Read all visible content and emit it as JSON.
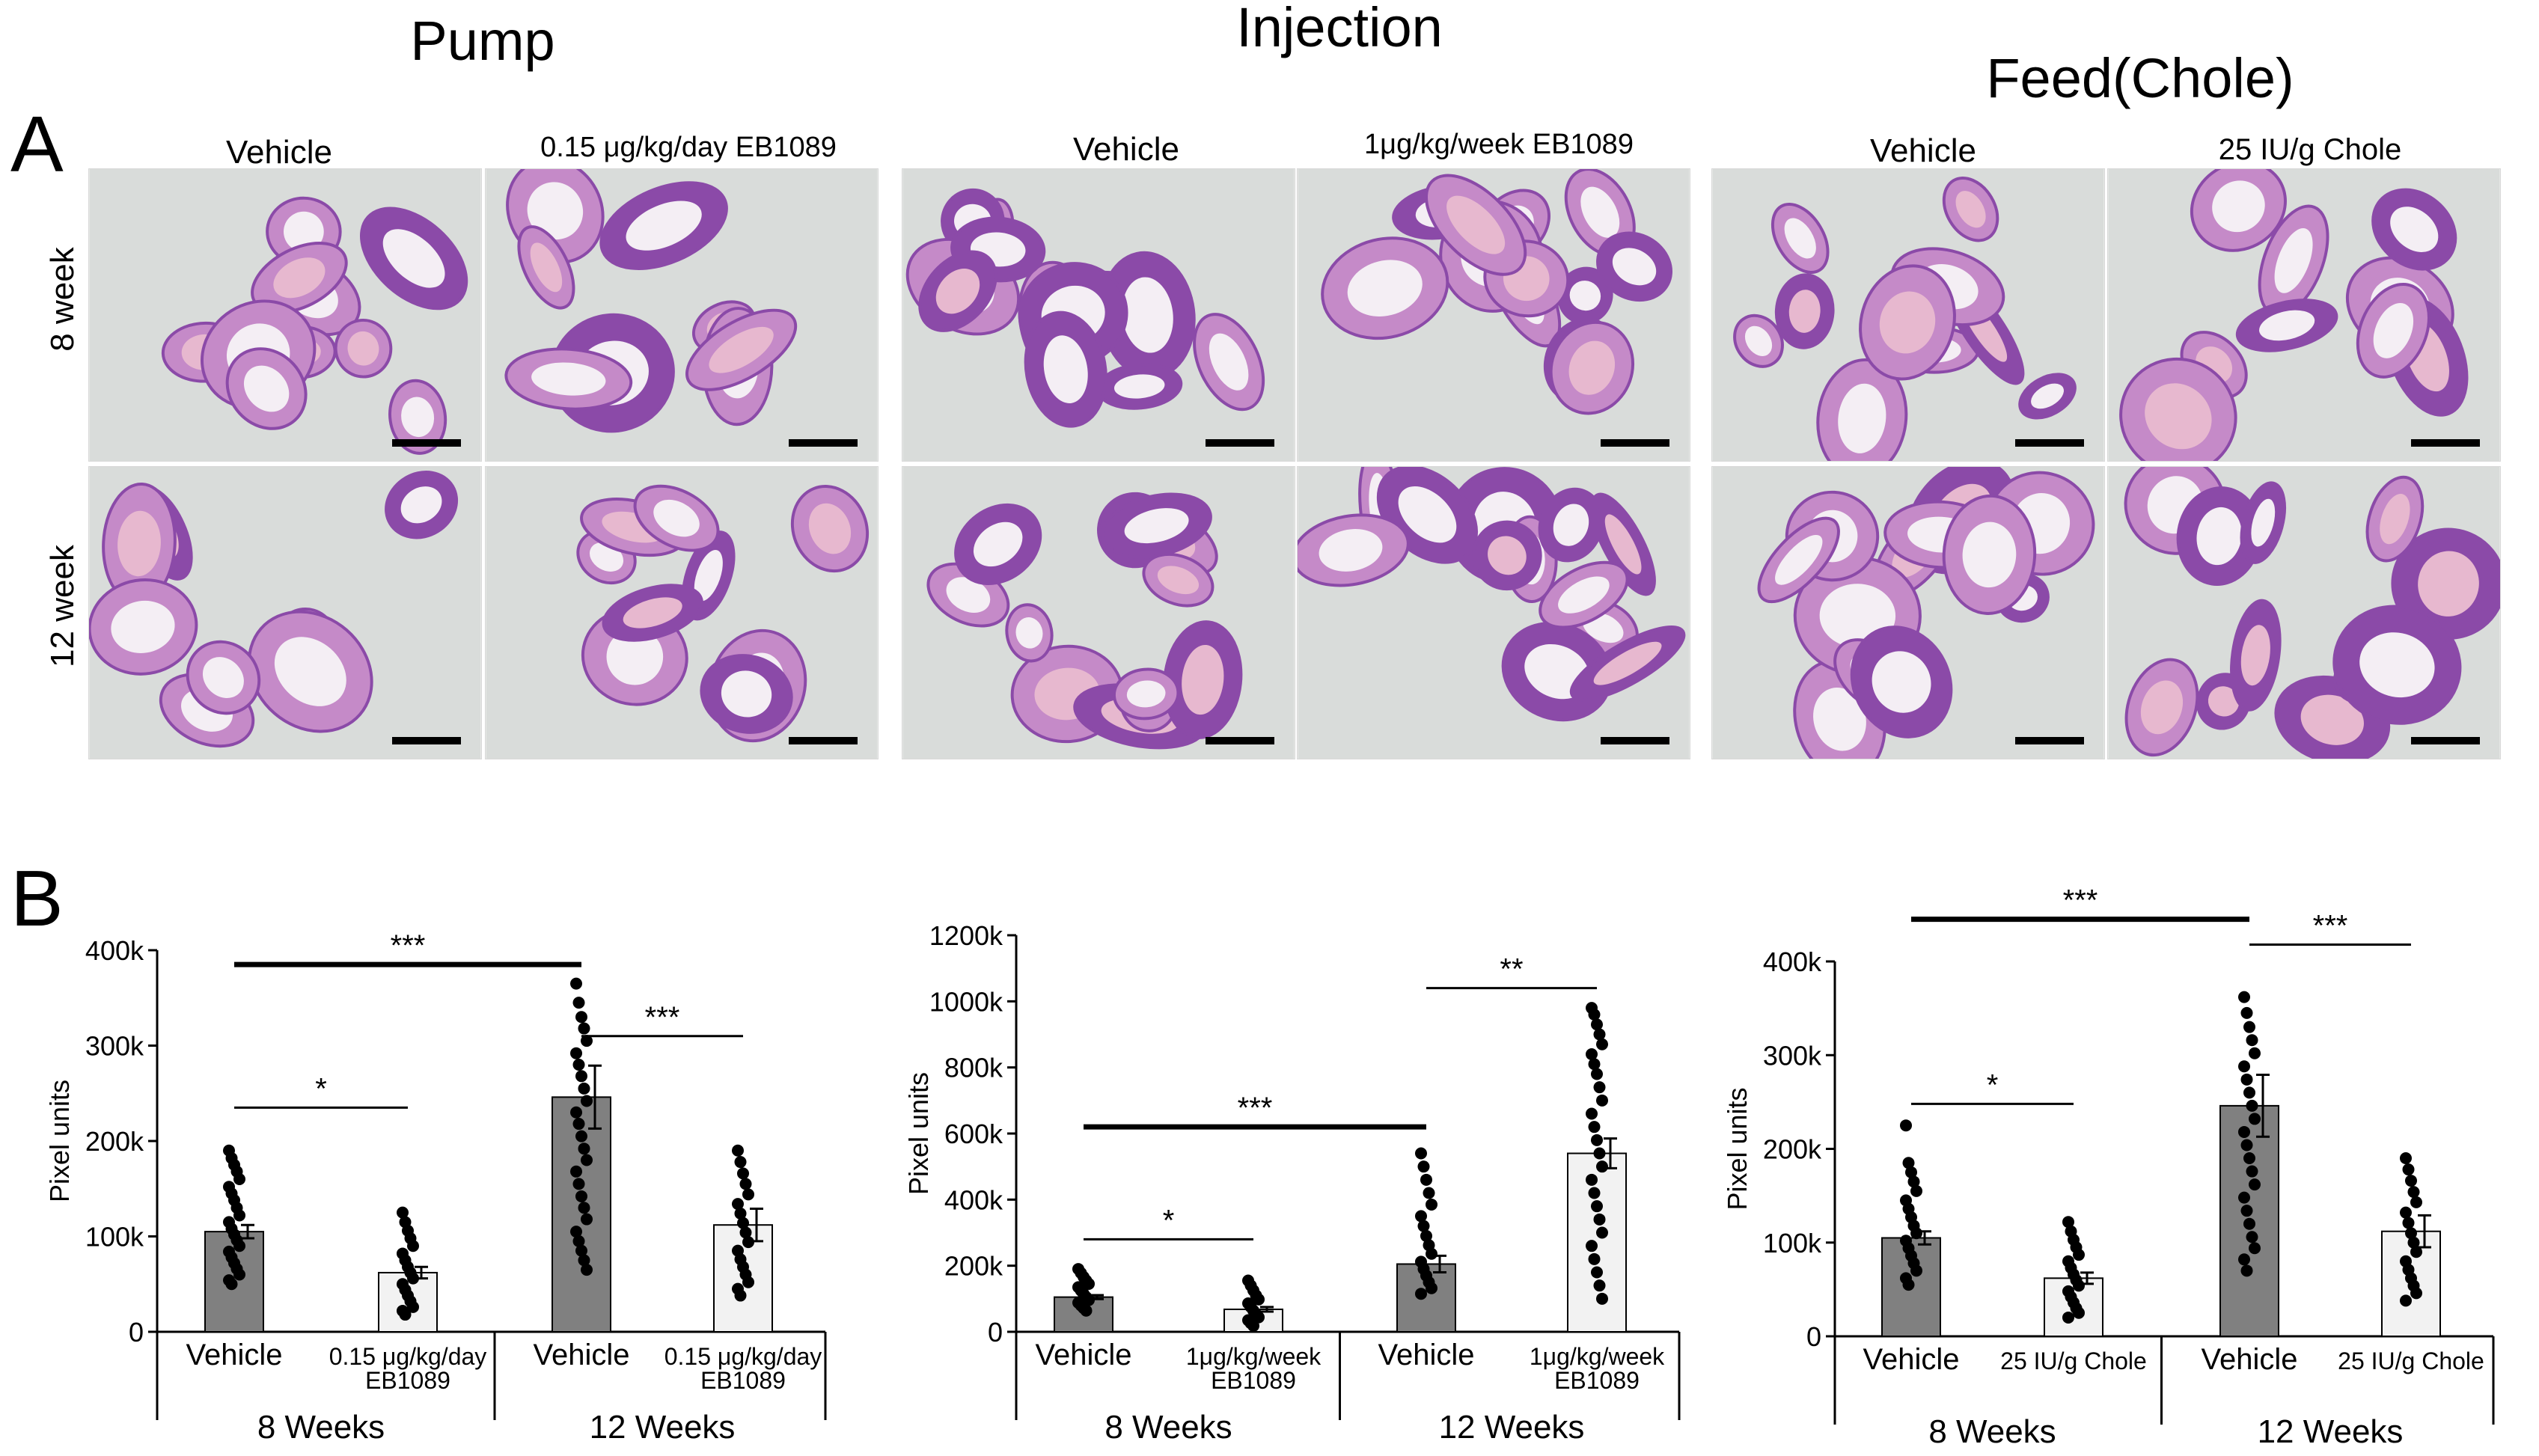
{
  "panel_a": {
    "letter": "A",
    "groups": [
      {
        "title": "Pump",
        "columns": [
          "Vehicle",
          "0.15 μg/kg/day EB1089"
        ]
      },
      {
        "title": "Injection",
        "columns": [
          "Vehicle",
          "1μg/kg/week EB1089"
        ]
      },
      {
        "title": "Feed(Chole)",
        "columns": [
          "Vehicle",
          "25 IU/g Chole"
        ]
      }
    ],
    "rows": [
      "8 week",
      "12 week"
    ],
    "tissue_colors": {
      "background": "#d9dcda",
      "tissue": "#8b4aa8",
      "tissue_light": "#c58ac8",
      "stroma": "#e7b8cf"
    }
  },
  "panel_b": {
    "letter": "B"
  },
  "chart_data": [
    {
      "type": "bar",
      "title": "",
      "ylabel": "Pixel units",
      "ylim": [
        0,
        400000
      ],
      "yticks": [
        0,
        100000,
        200000,
        300000,
        400000
      ],
      "ytick_labels": [
        "0",
        "100k",
        "200k",
        "300k",
        "400k"
      ],
      "categories": [
        "Vehicle",
        "0.15 μg/kg/day EB1089",
        "Vehicle",
        "0.15 μg/kg/day EB1089"
      ],
      "category_lines": [
        [
          "Vehicle"
        ],
        [
          "0.15 μg/kg/day",
          "EB1089"
        ],
        [
          "Vehicle"
        ],
        [
          "0.15 μg/kg/day",
          "EB1089"
        ]
      ],
      "groups": [
        "8 Weeks",
        "12 Weeks"
      ],
      "values": [
        105000,
        62000,
        246000,
        112000
      ],
      "errors": [
        7000,
        6000,
        33000,
        17000
      ],
      "bar_colors": [
        "#808080",
        "#f2f2f2",
        "#808080",
        "#f2f2f2"
      ],
      "points": [
        [
          190000,
          182000,
          175000,
          168000,
          160000,
          152000,
          145000,
          138000,
          130000,
          122000,
          115000,
          108000,
          102000,
          96000,
          90000,
          84000,
          78000,
          72000,
          66000,
          60000,
          54000,
          50000
        ],
        [
          125000,
          115000,
          106000,
          98000,
          90000,
          82000,
          75000,
          68000,
          62000,
          56000,
          50000,
          44000,
          38000,
          32000,
          26000,
          22000,
          18000
        ],
        [
          365000,
          345000,
          330000,
          318000,
          305000,
          292000,
          280000,
          268000,
          255000,
          242000,
          230000,
          218000,
          205000,
          192000,
          180000,
          168000,
          155000,
          142000,
          130000,
          118000,
          105000,
          95000,
          85000,
          75000,
          65000
        ],
        [
          190000,
          178000,
          166000,
          155000,
          144000,
          134000,
          124000,
          114000,
          104000,
          94000,
          85000,
          76000,
          68000,
          60000,
          52000,
          45000,
          38000
        ]
      ],
      "significance": [
        {
          "from": 0,
          "to": 1,
          "label": "*",
          "y": 235000,
          "bold": false
        },
        {
          "from": 0,
          "to": 2,
          "label": "***",
          "y": 385000,
          "bold": true
        },
        {
          "from": 2,
          "to": 3,
          "label": "***",
          "y": 310000,
          "bold": false
        }
      ]
    },
    {
      "type": "bar",
      "title": "",
      "ylabel": "Pixel units",
      "ylim": [
        0,
        1200000
      ],
      "yticks": [
        0,
        200000,
        400000,
        600000,
        800000,
        1000000,
        1200000
      ],
      "ytick_labels": [
        "0",
        "200k",
        "400k",
        "600k",
        "800k",
        "1000k",
        "1200k"
      ],
      "categories": [
        "Vehicle",
        "1μg/kg/week EB1089",
        "Vehicle",
        "1μg/kg/week EB1089"
      ],
      "category_lines": [
        [
          "Vehicle"
        ],
        [
          "1μg/kg/week",
          "EB1089"
        ],
        [
          "Vehicle"
        ],
        [
          "1μg/kg/week",
          "EB1089"
        ]
      ],
      "groups": [
        "8 Weeks",
        "12 Weeks"
      ],
      "values": [
        105000,
        68000,
        205000,
        540000
      ],
      "errors": [
        6000,
        7000,
        25000,
        45000
      ],
      "bar_colors": [
        "#808080",
        "#f2f2f2",
        "#808080",
        "#f2f2f2"
      ],
      "points": [
        [
          190000,
          178000,
          166000,
          155000,
          145000,
          135000,
          125000,
          115000,
          105000,
          96000,
          88000,
          80000,
          72000,
          64000
        ],
        [
          155000,
          140000,
          125000,
          110000,
          98000,
          86000,
          75000,
          64000,
          54000,
          44000,
          35000,
          26000,
          18000
        ],
        [
          540000,
          500000,
          460000,
          420000,
          385000,
          350000,
          320000,
          290000,
          262000,
          236000,
          212000,
          190000,
          170000,
          150000,
          132000,
          115000
        ],
        [
          980000,
          960000,
          930000,
          900000,
          870000,
          840000,
          810000,
          780000,
          740000,
          700000,
          660000,
          620000,
          580000,
          540000,
          500000,
          460000,
          420000,
          380000,
          340000,
          300000,
          260000,
          220000,
          180000,
          140000,
          100000
        ]
      ],
      "significance": [
        {
          "from": 0,
          "to": 1,
          "label": "*",
          "y": 280000,
          "bold": false
        },
        {
          "from": 0,
          "to": 2,
          "label": "***",
          "y": 620000,
          "bold": true
        },
        {
          "from": 2,
          "to": 3,
          "label": "**",
          "y": 1040000,
          "bold": false
        }
      ]
    },
    {
      "type": "bar",
      "title": "",
      "ylabel": "Pixel units",
      "ylim": [
        0,
        400000
      ],
      "yticks": [
        0,
        100000,
        200000,
        300000,
        400000
      ],
      "ytick_labels": [
        "0",
        "100k",
        "200k",
        "300k",
        "400k"
      ],
      "categories": [
        "Vehicle",
        "25 IU/g Chole",
        "Vehicle",
        "25 IU/g Chole"
      ],
      "category_lines": [
        [
          "Vehicle"
        ],
        [
          "25 IU/g Chole"
        ],
        [
          "Vehicle"
        ],
        [
          "25 IU/g Chole"
        ]
      ],
      "groups": [
        "8 Weeks",
        "12 Weeks"
      ],
      "values": [
        105000,
        62000,
        246000,
        112000
      ],
      "errors": [
        7000,
        6000,
        33000,
        17000
      ],
      "bar_colors": [
        "#808080",
        "#f2f2f2",
        "#808080",
        "#f2f2f2"
      ],
      "points": [
        [
          225000,
          185000,
          175000,
          165000,
          155000,
          145000,
          136000,
          127000,
          118000,
          110000,
          102000,
          94000,
          86000,
          78000,
          70000,
          62000,
          55000
        ],
        [
          122000,
          112000,
          103000,
          95000,
          87000,
          80000,
          73000,
          66000,
          60000,
          54000,
          48000,
          42000,
          36000,
          30000,
          25000,
          20000
        ],
        [
          362000,
          345000,
          330000,
          316000,
          302000,
          288000,
          274000,
          260000,
          246000,
          232000,
          218000,
          204000,
          190000,
          176000,
          162000,
          148000,
          134000,
          120000,
          106000,
          94000,
          82000,
          70000
        ],
        [
          190000,
          178000,
          166000,
          154000,
          143000,
          132000,
          121000,
          110000,
          100000,
          90000,
          80000,
          71000,
          62000,
          54000,
          46000,
          38000
        ]
      ],
      "significance": [
        {
          "from": 0,
          "to": 1,
          "label": "*",
          "y": 248000,
          "bold": false
        },
        {
          "from": 0,
          "to": 2,
          "label": "***",
          "y": 445000,
          "bold": true
        },
        {
          "from": 2,
          "to": 3,
          "label": "***",
          "y": 418000,
          "bold": false
        }
      ]
    }
  ]
}
